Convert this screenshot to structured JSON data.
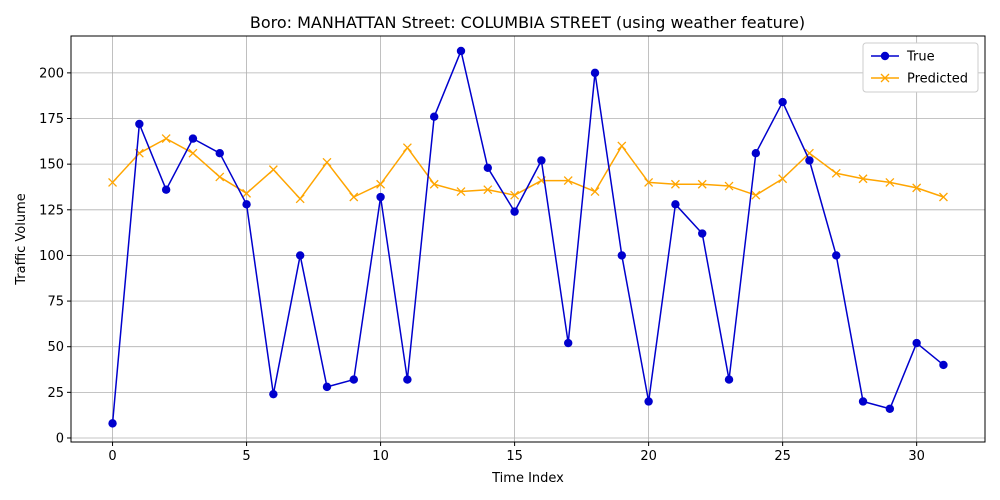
{
  "chart_data": {
    "type": "line",
    "title": "Boro: MANHATTAN Street: COLUMBIA STREET (using weather feature)",
    "xlabel": "Time Index",
    "ylabel": "Traffic Volume",
    "xlim": [
      -1.55,
      32.55
    ],
    "ylim": [
      -2.2,
      220.2
    ],
    "x_ticks": [
      0,
      5,
      10,
      15,
      20,
      25,
      30
    ],
    "y_ticks": [
      0,
      25,
      50,
      75,
      100,
      125,
      150,
      175,
      200
    ],
    "grid": true,
    "legend_position": "top-right",
    "x": [
      0,
      1,
      2,
      3,
      4,
      5,
      6,
      7,
      8,
      9,
      10,
      11,
      12,
      13,
      14,
      15,
      16,
      17,
      18,
      19,
      20,
      21,
      22,
      23,
      24,
      25,
      26,
      27,
      28,
      29,
      30,
      31
    ],
    "series": [
      {
        "name": "True",
        "color": "#0000cd",
        "marker": "circle",
        "values": [
          8,
          172,
          136,
          164,
          156,
          128,
          24,
          100,
          28,
          32,
          132,
          32,
          176,
          212,
          148,
          124,
          152,
          52,
          200,
          100,
          20,
          128,
          112,
          32,
          156,
          184,
          152,
          100,
          20,
          16,
          52,
          40
        ]
      },
      {
        "name": "Predicted",
        "color": "#ffa500",
        "marker": "x",
        "values": [
          140,
          156,
          164,
          156,
          143,
          134,
          147,
          131,
          151,
          132,
          139,
          159,
          139,
          135,
          136,
          133,
          141,
          141,
          135,
          160,
          140,
          139,
          139,
          138,
          133,
          142,
          156,
          145,
          142,
          140,
          137,
          132
        ]
      }
    ]
  }
}
